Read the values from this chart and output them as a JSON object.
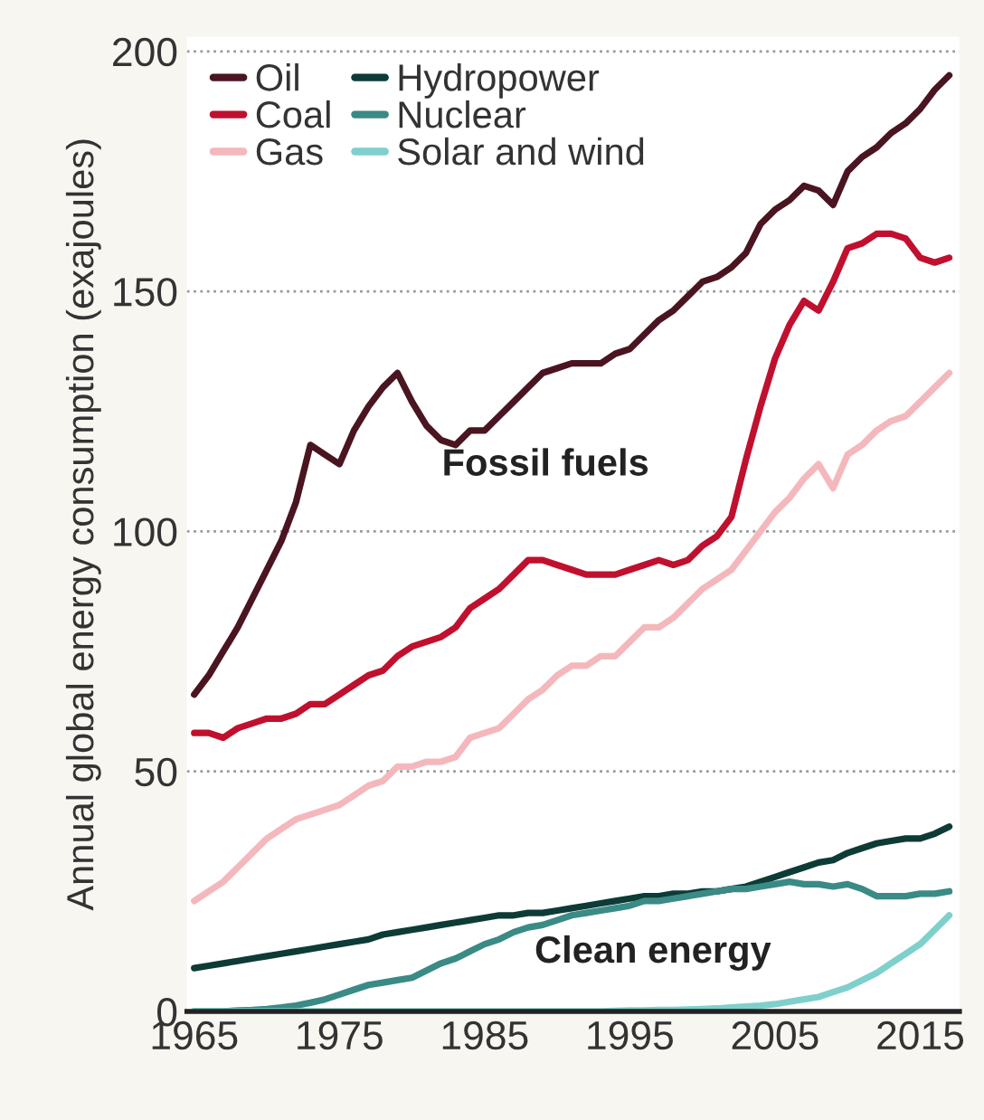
{
  "chart_data": {
    "type": "line",
    "ylabel": "Annual global energy consumption (exajoules)",
    "x": [
      1965,
      1966,
      1967,
      1968,
      1969,
      1970,
      1971,
      1972,
      1973,
      1974,
      1975,
      1976,
      1977,
      1978,
      1979,
      1980,
      1981,
      1982,
      1983,
      1984,
      1985,
      1986,
      1987,
      1988,
      1989,
      1990,
      1991,
      1992,
      1993,
      1994,
      1995,
      1996,
      1997,
      1998,
      1999,
      2000,
      2001,
      2002,
      2003,
      2004,
      2005,
      2006,
      2007,
      2008,
      2009,
      2010,
      2011,
      2012,
      2013,
      2014,
      2015,
      2016,
      2017
    ],
    "series": [
      {
        "name": "Oil",
        "color": "#4a1520",
        "values": [
          66,
          70,
          75,
          80,
          86,
          92,
          98,
          106,
          118,
          116,
          114,
          121,
          126,
          130,
          133,
          127,
          122,
          119,
          118,
          121,
          121,
          124,
          127,
          130,
          133,
          134,
          135,
          135,
          135,
          137,
          138,
          141,
          144,
          146,
          149,
          152,
          153,
          155,
          158,
          164,
          167,
          169,
          172,
          171,
          168,
          175,
          178,
          180,
          183,
          185,
          188,
          192,
          195
        ]
      },
      {
        "name": "Coal",
        "color": "#c0102e",
        "values": [
          58,
          58,
          57,
          59,
          60,
          61,
          61,
          62,
          64,
          64,
          66,
          68,
          70,
          71,
          74,
          76,
          77,
          78,
          80,
          84,
          86,
          88,
          91,
          94,
          94,
          93,
          92,
          91,
          91,
          91,
          92,
          93,
          94,
          93,
          94,
          97,
          99,
          103,
          115,
          126,
          136,
          143,
          148,
          146,
          152,
          159,
          160,
          162,
          162,
          161,
          157,
          156,
          157
        ]
      },
      {
        "name": "Gas",
        "color": "#f4b8bc",
        "values": [
          23,
          25,
          27,
          30,
          33,
          36,
          38,
          40,
          41,
          42,
          43,
          45,
          47,
          48,
          51,
          51,
          52,
          52,
          53,
          57,
          58,
          59,
          62,
          65,
          67,
          70,
          72,
          72,
          74,
          74,
          77,
          80,
          80,
          82,
          85,
          88,
          90,
          92,
          96,
          100,
          104,
          107,
          111,
          114,
          109,
          116,
          118,
          121,
          123,
          124,
          127,
          130,
          133
        ]
      },
      {
        "name": "Hydropower",
        "color": "#0d3b36",
        "values": [
          9,
          9.5,
          10,
          10.5,
          11,
          11.5,
          12,
          12.5,
          13,
          13.5,
          14,
          14.5,
          15,
          16,
          16.5,
          17,
          17.5,
          18,
          18.5,
          19,
          19.5,
          20,
          20,
          20.5,
          20.5,
          21,
          21.5,
          22,
          22.5,
          23,
          23.5,
          24,
          24,
          24.5,
          24.5,
          25,
          25,
          25.5,
          26,
          27,
          28,
          29,
          30,
          31,
          31.5,
          33,
          34,
          35,
          35.5,
          36,
          36,
          37,
          38.5
        ]
      },
      {
        "name": "Nuclear",
        "color": "#3a8a86",
        "values": [
          0,
          0,
          0,
          0.2,
          0.3,
          0.5,
          0.8,
          1.2,
          1.8,
          2.5,
          3.5,
          4.5,
          5.5,
          6,
          6.5,
          7,
          8.5,
          10,
          11,
          12.5,
          14,
          15,
          16.5,
          17.5,
          18,
          19,
          20,
          20.5,
          21,
          21.5,
          22,
          23,
          23,
          23.5,
          24,
          24.5,
          25,
          25.5,
          25.5,
          26,
          26.5,
          27,
          26.5,
          26.5,
          26,
          26.5,
          25.5,
          24,
          24,
          24,
          24.5,
          24.5,
          25
        ]
      },
      {
        "name": "Solar and wind",
        "color": "#7fd0cc",
        "values": [
          0,
          0,
          0,
          0,
          0,
          0,
          0,
          0,
          0,
          0,
          0,
          0,
          0,
          0,
          0,
          0,
          0,
          0,
          0,
          0,
          0,
          0,
          0,
          0,
          0,
          0,
          0,
          0,
          0,
          0.1,
          0.2,
          0.2,
          0.3,
          0.3,
          0.4,
          0.5,
          0.6,
          0.8,
          1,
          1.2,
          1.5,
          2,
          2.5,
          3,
          4,
          5,
          6.5,
          8,
          10,
          12,
          14,
          17,
          20
        ]
      }
    ],
    "xlim": [
      1964.5,
      2017.7
    ],
    "ylim": [
      0,
      203
    ],
    "xticks": [
      1965,
      1975,
      1985,
      1995,
      2005,
      2015
    ],
    "yticks": [
      0,
      50,
      100,
      150,
      200
    ],
    "grid": "y",
    "legend": "top left",
    "line_style": "solid",
    "annotations": [
      "Fossil fuels",
      "Clean energy"
    ]
  }
}
